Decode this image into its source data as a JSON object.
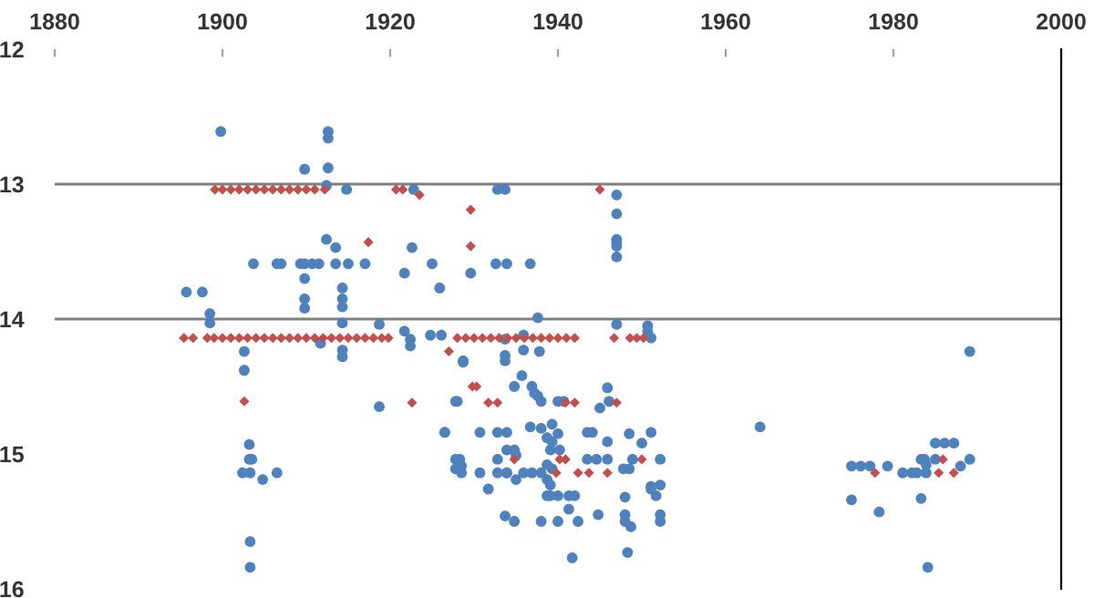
{
  "chart_data": {
    "type": "scatter",
    "xlim": [
      1880,
      2000
    ],
    "xticks": [
      1880,
      1900,
      1920,
      1940,
      1960,
      1980,
      2000
    ],
    "ylim": [
      16,
      12
    ],
    "yticks": [
      12,
      13,
      14,
      15,
      16
    ],
    "grid": false,
    "legend": false,
    "ref_lines": [
      {
        "axis": "y",
        "value": 13,
        "color": "#808080"
      },
      {
        "axis": "y",
        "value": 14,
        "color": "#808080"
      }
    ],
    "series": [
      {
        "color": "#4f81bd",
        "marker": "circle",
        "x": [
          1899.8,
          1912.6,
          1912.6,
          1909.8,
          1912.6,
          1912.4,
          1914.8,
          1922.8,
          1912.4,
          1913.5,
          1922.6,
          1903.7,
          1906.5,
          1907,
          1909.3,
          1909.8,
          1910.7,
          1911.5,
          1913.5,
          1915,
          1917,
          1925,
          1929.6,
          1921.7,
          1925.9,
          1895.7,
          1897.6,
          1909.8,
          1909.8,
          1909.8,
          1914.3,
          1914.3,
          1914.3,
          1898.5,
          1898.5,
          1918.7,
          1914.3,
          1911.7,
          1921.7,
          1922.4,
          1922.4,
          1924.8,
          1926.1,
          1902.6,
          1914.3,
          1914.3,
          1928.7,
          1932.8,
          1933.7,
          1947,
          1947,
          1947,
          1947,
          1947,
          1947,
          1932.6,
          1933.9,
          1936.7,
          1937.6,
          1947,
          1950.7,
          1950.7,
          1933.7,
          1935.9,
          1951.1,
          1933.7,
          1933.7,
          1935.9,
          1937.8,
          1902.6,
          1918.7,
          1926.5,
          1927.8,
          1928.7,
          1903.2,
          1903.2,
          1903.5,
          1902.4,
          1903.3,
          1906.5,
          1904.8,
          1903.3,
          1903.3,
          1927.8,
          1927.8,
          1928.5,
          1935.7,
          1934.8,
          1936.9,
          1937.2,
          1937.6,
          1938,
          1928,
          1940,
          1940.7,
          1945.9,
          1945,
          1946.1,
          1926.5,
          1930.7,
          1932.8,
          1933.9,
          1936.7,
          1938,
          1939.3,
          1940,
          1943.5,
          1944.1,
          1938.7,
          1939.3,
          1940.2,
          1939.1,
          1945.9,
          1948.5,
          1951.1,
          1950,
          1934.8,
          1933.9,
          1935,
          1932.8,
          1943.5,
          1944.6,
          1945.9,
          1948.9,
          1952.2,
          1928.3,
          1928.5,
          1930.7,
          1932.8,
          1933.9,
          1935.9,
          1936.9,
          1938,
          1938.7,
          1939.3,
          1947.8,
          1948.5,
          1933.9,
          1935,
          1938.7,
          1939.1,
          1951.1,
          1951.1,
          1952.2,
          1931.7,
          1938.7,
          1940,
          1941.3,
          1942,
          1948,
          1951.7,
          1939.1,
          1941.3,
          1944.8,
          1948,
          1952.2,
          1933.7,
          1934.8,
          1938,
          1940,
          1942.4,
          1948,
          1952.2,
          1948.7,
          1948.3,
          1941.7,
          1984.1,
          1989.1,
          1964.1,
          1975,
          1976.1,
          1977.2,
          1979.3,
          1981.1,
          1982.2,
          1983.9,
          1982.8,
          1983.7,
          1985,
          1983.3,
          1983.9,
          1985,
          1986.1,
          1987.2,
          1988,
          1989.1,
          1975,
          1978.3,
          1983.3
        ],
        "values": [
          12.61,
          12.61,
          12.66,
          12.89,
          12.88,
          13.01,
          13.04,
          13.04,
          13.41,
          13.47,
          13.47,
          13.59,
          13.59,
          13.59,
          13.59,
          13.59,
          13.59,
          13.59,
          13.59,
          13.59,
          13.59,
          13.59,
          13.66,
          13.66,
          13.77,
          13.8,
          13.8,
          13.7,
          13.85,
          13.92,
          13.77,
          13.85,
          13.91,
          13.96,
          14.03,
          14.04,
          14.03,
          14.18,
          14.09,
          14.15,
          14.2,
          14.12,
          14.12,
          14.24,
          14.23,
          14.28,
          14.31,
          13.04,
          13.04,
          13.08,
          13.22,
          13.41,
          13.43,
          13.46,
          13.54,
          13.59,
          13.59,
          13.59,
          13.99,
          14.04,
          14.05,
          14.09,
          14.15,
          14.12,
          14.14,
          14.27,
          14.31,
          14.23,
          14.24,
          14.38,
          14.65,
          14.84,
          14.61,
          14.32,
          14.93,
          15.04,
          15.04,
          15.14,
          15.14,
          15.14,
          15.19,
          15.65,
          15.84,
          15.04,
          15.11,
          15.14,
          14.42,
          14.5,
          14.5,
          14.55,
          14.57,
          14.61,
          14.61,
          14.61,
          14.61,
          14.51,
          14.66,
          14.61,
          14.84,
          14.84,
          14.84,
          14.84,
          14.8,
          14.81,
          14.78,
          14.85,
          14.84,
          14.84,
          14.88,
          14.91,
          14.97,
          14.97,
          14.91,
          14.85,
          14.84,
          14.92,
          14.97,
          14.97,
          15.01,
          15.04,
          15.04,
          15.04,
          15.04,
          15.04,
          15.04,
          15.04,
          15.09,
          15.14,
          15.14,
          15.14,
          15.14,
          15.14,
          15.14,
          15.08,
          15.11,
          15.11,
          15.11,
          15.14,
          15.19,
          15.19,
          15.23,
          15.26,
          15.24,
          15.23,
          15.26,
          15.31,
          15.31,
          15.31,
          15.31,
          15.32,
          15.31,
          15.31,
          15.41,
          15.45,
          15.45,
          15.45,
          15.46,
          15.5,
          15.5,
          15.5,
          15.5,
          15.5,
          15.5,
          15.54,
          15.73,
          15.77,
          15.84,
          14.24,
          14.8,
          15.09,
          15.09,
          15.09,
          15.09,
          15.14,
          15.14,
          15.14,
          15.14,
          15.04,
          15.04,
          15.04,
          15.08,
          14.92,
          14.92,
          14.92,
          15.09,
          15.04,
          15.34,
          15.43,
          15.33
        ]
      },
      {
        "color": "#c0504d",
        "marker": "diamond",
        "x": [
          1899.1,
          1900,
          1901,
          1902,
          1903,
          1904,
          1905,
          1906,
          1907,
          1908,
          1909,
          1910,
          1911,
          1912.2,
          1920.7,
          1921.5,
          1923.5,
          1945,
          1929.6,
          1929.6,
          1917.4,
          1895.4,
          1896.5,
          1898.2,
          1899,
          1900,
          1901,
          1902,
          1903,
          1904,
          1905,
          1906,
          1907,
          1908,
          1909,
          1910,
          1911,
          1912,
          1913,
          1914,
          1915,
          1916,
          1917,
          1918,
          1919,
          1919.8,
          1928,
          1929,
          1930,
          1931,
          1932,
          1933,
          1934,
          1935,
          1936,
          1937,
          1938,
          1939,
          1940,
          1941,
          1942,
          1946.7,
          1948.6,
          1949.4,
          1950.2,
          1902.6,
          1922.6,
          1927,
          1929.8,
          1930.3,
          1931.7,
          1932.8,
          1940.9,
          1942,
          1947,
          1934.8,
          1940.2,
          1940.9,
          1950,
          1939.8,
          1942.4,
          1943.7,
          1945.9,
          1977.8,
          1985.9,
          1985.4,
          1987.2
        ],
        "values": [
          13.04,
          13.04,
          13.04,
          13.04,
          13.04,
          13.04,
          13.04,
          13.04,
          13.04,
          13.04,
          13.04,
          13.04,
          13.04,
          13.04,
          13.04,
          13.04,
          13.08,
          13.04,
          13.19,
          13.46,
          13.43,
          14.14,
          14.14,
          14.14,
          14.14,
          14.14,
          14.14,
          14.14,
          14.14,
          14.14,
          14.14,
          14.14,
          14.14,
          14.14,
          14.14,
          14.14,
          14.14,
          14.14,
          14.14,
          14.14,
          14.14,
          14.14,
          14.14,
          14.14,
          14.14,
          14.14,
          14.14,
          14.14,
          14.14,
          14.14,
          14.14,
          14.14,
          14.14,
          14.14,
          14.14,
          14.14,
          14.14,
          14.14,
          14.14,
          14.14,
          14.14,
          14.14,
          14.14,
          14.14,
          14.14,
          14.61,
          14.62,
          14.24,
          14.5,
          14.5,
          14.62,
          14.62,
          14.62,
          14.62,
          14.62,
          15.04,
          15.04,
          15.04,
          15.04,
          15.14,
          15.14,
          15.14,
          15.14,
          15.14,
          15.04,
          15.14,
          15.14
        ]
      }
    ]
  }
}
